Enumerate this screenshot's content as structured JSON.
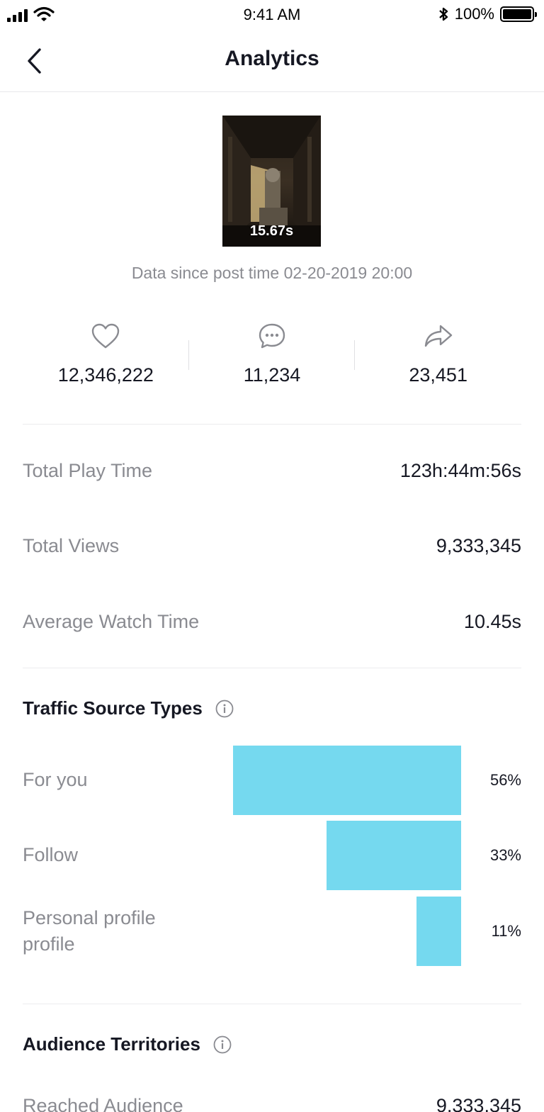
{
  "status_bar": {
    "time": "9:41 AM",
    "battery": "100%",
    "icons": [
      "signal-icon",
      "wifi-icon",
      "bluetooth-icon",
      "battery-icon"
    ]
  },
  "nav": {
    "title": "Analytics",
    "back_icon": "chevron-left-icon"
  },
  "video": {
    "duration": "15.67s",
    "data_since": "Data since post time 02-20-2019 20:00"
  },
  "stats": [
    {
      "icon": "heart-icon",
      "value": "12,346,222"
    },
    {
      "icon": "comment-icon",
      "value": "11,234"
    },
    {
      "icon": "share-icon",
      "value": "23,451"
    }
  ],
  "metrics": [
    {
      "label": "Total Play Time",
      "value": "123h:44m:56s"
    },
    {
      "label": "Total Views",
      "value": "9,333,345"
    },
    {
      "label": "Average Watch Time",
      "value": "10.45s"
    }
  ],
  "traffic": {
    "title": "Traffic Source Types",
    "bar_color": "#75d9ef",
    "items": [
      {
        "label": "For you",
        "percent_label": "56%",
        "percent": 56
      },
      {
        "label": "Follow",
        "percent_label": "33%",
        "percent": 33
      },
      {
        "label": "Personal profile profile",
        "percent_label": "11%",
        "percent": 11
      }
    ]
  },
  "audience": {
    "title": "Audience Territories",
    "reached_label": "Reached Audience",
    "reached_value": "9,333,345"
  }
}
